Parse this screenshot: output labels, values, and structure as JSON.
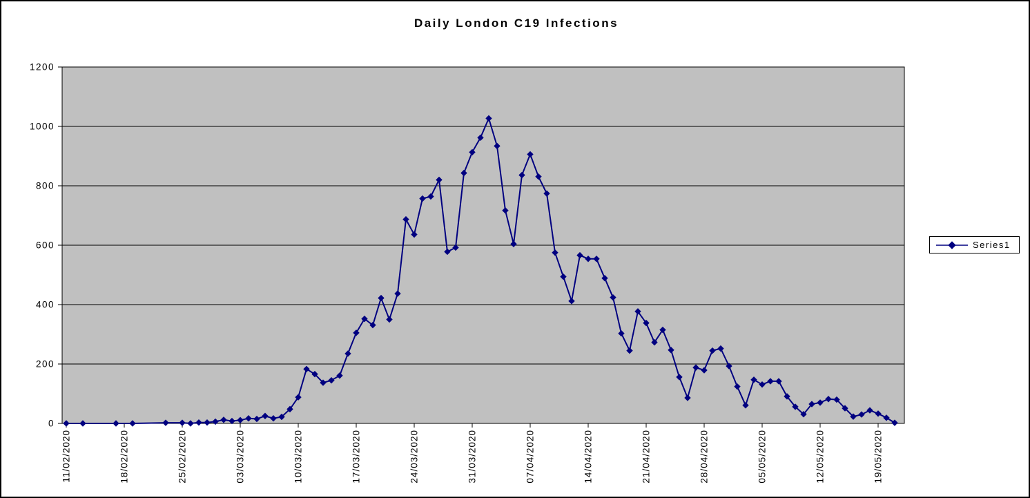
{
  "chart": {
    "title": "Daily London C19 Infections",
    "legend": {
      "label": "Series1"
    },
    "colors": {
      "series": "#000080",
      "plot_background": "#c0c0c0",
      "gridline": "#000000",
      "axis": "#000000",
      "text": "#000000",
      "chart_background": "#ffffff",
      "border": "#000000"
    }
  },
  "chart_data": {
    "type": "line",
    "title": "Daily London C19 Infections",
    "series_name": "Series1",
    "marker": "diamond",
    "grid": "horizontal",
    "legend_position": "right",
    "y_axis": {
      "min": 0,
      "max": 1200,
      "tick_step": 200,
      "tick_labels": [
        "0",
        "200",
        "400",
        "600",
        "800",
        "1000",
        "1200"
      ]
    },
    "x_axis": {
      "type": "date",
      "tick_interval_days": 7,
      "tick_labels": [
        "11/02/2020",
        "18/02/2020",
        "25/02/2020",
        "03/03/2020",
        "10/03/2020",
        "17/03/2020",
        "24/03/2020",
        "31/03/2020",
        "07/04/2020",
        "14/04/2020",
        "21/04/2020",
        "28/04/2020",
        "05/05/2020",
        "12/05/2020",
        "19/05/2020"
      ]
    },
    "points": [
      {
        "date": "11/02/2020",
        "value": 0
      },
      {
        "date": "13/02/2020",
        "value": 0
      },
      {
        "date": "17/02/2020",
        "value": 0
      },
      {
        "date": "19/02/2020",
        "value": 0
      },
      {
        "date": "23/02/2020",
        "value": 2
      },
      {
        "date": "25/02/2020",
        "value": 2
      },
      {
        "date": "26/02/2020",
        "value": 0
      },
      {
        "date": "27/02/2020",
        "value": 3
      },
      {
        "date": "28/02/2020",
        "value": 3
      },
      {
        "date": "29/02/2020",
        "value": 6
      },
      {
        "date": "01/03/2020",
        "value": 12
      },
      {
        "date": "02/03/2020",
        "value": 8
      },
      {
        "date": "03/03/2020",
        "value": 11
      },
      {
        "date": "04/03/2020",
        "value": 17
      },
      {
        "date": "05/03/2020",
        "value": 15
      },
      {
        "date": "06/03/2020",
        "value": 25
      },
      {
        "date": "07/03/2020",
        "value": 17
      },
      {
        "date": "08/03/2020",
        "value": 22
      },
      {
        "date": "09/03/2020",
        "value": 48
      },
      {
        "date": "10/03/2020",
        "value": 88
      },
      {
        "date": "11/03/2020",
        "value": 183
      },
      {
        "date": "12/03/2020",
        "value": 166
      },
      {
        "date": "13/03/2020",
        "value": 137
      },
      {
        "date": "14/03/2020",
        "value": 145
      },
      {
        "date": "15/03/2020",
        "value": 161
      },
      {
        "date": "16/03/2020",
        "value": 235
      },
      {
        "date": "17/03/2020",
        "value": 305
      },
      {
        "date": "18/03/2020",
        "value": 352
      },
      {
        "date": "19/03/2020",
        "value": 331
      },
      {
        "date": "20/03/2020",
        "value": 422
      },
      {
        "date": "21/03/2020",
        "value": 350
      },
      {
        "date": "22/03/2020",
        "value": 437
      },
      {
        "date": "23/03/2020",
        "value": 687
      },
      {
        "date": "24/03/2020",
        "value": 636
      },
      {
        "date": "25/03/2020",
        "value": 757
      },
      {
        "date": "26/03/2020",
        "value": 764
      },
      {
        "date": "27/03/2020",
        "value": 820
      },
      {
        "date": "28/03/2020",
        "value": 578
      },
      {
        "date": "29/03/2020",
        "value": 592
      },
      {
        "date": "30/03/2020",
        "value": 843
      },
      {
        "date": "31/03/2020",
        "value": 913
      },
      {
        "date": "01/04/2020",
        "value": 962
      },
      {
        "date": "02/04/2020",
        "value": 1027
      },
      {
        "date": "03/04/2020",
        "value": 934
      },
      {
        "date": "04/04/2020",
        "value": 717
      },
      {
        "date": "05/04/2020",
        "value": 604
      },
      {
        "date": "06/04/2020",
        "value": 836
      },
      {
        "date": "07/04/2020",
        "value": 906
      },
      {
        "date": "08/04/2020",
        "value": 831
      },
      {
        "date": "09/04/2020",
        "value": 774
      },
      {
        "date": "10/04/2020",
        "value": 575
      },
      {
        "date": "11/04/2020",
        "value": 494
      },
      {
        "date": "12/04/2020",
        "value": 412
      },
      {
        "date": "13/04/2020",
        "value": 566
      },
      {
        "date": "14/04/2020",
        "value": 554
      },
      {
        "date": "15/04/2020",
        "value": 554
      },
      {
        "date": "16/04/2020",
        "value": 489
      },
      {
        "date": "17/04/2020",
        "value": 424
      },
      {
        "date": "18/04/2020",
        "value": 303
      },
      {
        "date": "19/04/2020",
        "value": 245
      },
      {
        "date": "20/04/2020",
        "value": 377
      },
      {
        "date": "21/04/2020",
        "value": 338
      },
      {
        "date": "22/04/2020",
        "value": 273
      },
      {
        "date": "23/04/2020",
        "value": 315
      },
      {
        "date": "24/04/2020",
        "value": 247
      },
      {
        "date": "25/04/2020",
        "value": 156
      },
      {
        "date": "26/04/2020",
        "value": 86
      },
      {
        "date": "27/04/2020",
        "value": 188
      },
      {
        "date": "28/04/2020",
        "value": 179
      },
      {
        "date": "29/04/2020",
        "value": 245
      },
      {
        "date": "30/04/2020",
        "value": 252
      },
      {
        "date": "01/05/2020",
        "value": 193
      },
      {
        "date": "02/05/2020",
        "value": 124
      },
      {
        "date": "03/05/2020",
        "value": 61
      },
      {
        "date": "04/05/2020",
        "value": 147
      },
      {
        "date": "05/05/2020",
        "value": 131
      },
      {
        "date": "06/05/2020",
        "value": 142
      },
      {
        "date": "07/05/2020",
        "value": 142
      },
      {
        "date": "08/05/2020",
        "value": 91
      },
      {
        "date": "09/05/2020",
        "value": 56
      },
      {
        "date": "10/05/2020",
        "value": 31
      },
      {
        "date": "11/05/2020",
        "value": 65
      },
      {
        "date": "12/05/2020",
        "value": 70
      },
      {
        "date": "13/05/2020",
        "value": 82
      },
      {
        "date": "14/05/2020",
        "value": 80
      },
      {
        "date": "15/05/2020",
        "value": 51
      },
      {
        "date": "16/05/2020",
        "value": 23
      },
      {
        "date": "17/05/2020",
        "value": 30
      },
      {
        "date": "18/05/2020",
        "value": 44
      },
      {
        "date": "19/05/2020",
        "value": 33
      },
      {
        "date": "20/05/2020",
        "value": 19
      },
      {
        "date": "21/05/2020",
        "value": 2
      }
    ]
  }
}
